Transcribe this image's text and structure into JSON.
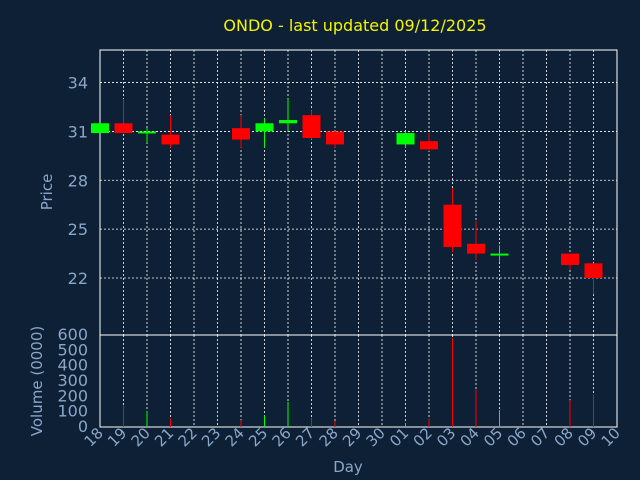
{
  "colors": {
    "background": "#0e2035",
    "title": "#f5f500",
    "axis_text": "#8aa6c8",
    "frame": "#ffffff",
    "grid": "#ffffff",
    "up": "#00ff00",
    "down": "#ff0000"
  },
  "chart_data": [
    {
      "type": "candlestick",
      "title": "ONDO - last updated 09/12/2025",
      "ylabel": "Price",
      "ylim": [
        18.5,
        36.0
      ],
      "yticks": [
        22,
        25,
        28,
        31,
        34
      ],
      "grid": true,
      "candles": [
        {
          "day": "18",
          "open": 30.9,
          "high": 31.5,
          "low": 30.9,
          "close": 31.5
        },
        {
          "day": "19",
          "open": 31.5,
          "high": 33.0,
          "low": 30.9,
          "close": 30.9
        },
        {
          "day": "20",
          "open": 30.9,
          "high": 31.2,
          "low": 30.3,
          "close": 31.0
        },
        {
          "day": "21",
          "open": 30.8,
          "high": 32.0,
          "low": 30.0,
          "close": 30.2
        },
        {
          "day": "24",
          "open": 31.2,
          "high": 32.0,
          "low": 30.0,
          "close": 30.5
        },
        {
          "day": "25",
          "open": 31.0,
          "high": 31.8,
          "low": 30.0,
          "close": 31.5
        },
        {
          "day": "26",
          "open": 31.5,
          "high": 33.0,
          "low": 31.0,
          "close": 31.7
        },
        {
          "day": "27",
          "open": 32.0,
          "high": 32.3,
          "low": 30.5,
          "close": 30.6
        },
        {
          "day": "28",
          "open": 31.0,
          "high": 31.0,
          "low": 30.0,
          "close": 30.2
        },
        {
          "day": "01",
          "open": 30.2,
          "high": 31.0,
          "low": 30.0,
          "close": 30.9
        },
        {
          "day": "02",
          "open": 30.4,
          "high": 30.9,
          "low": 29.8,
          "close": 29.9
        },
        {
          "day": "03",
          "open": 26.5,
          "high": 27.5,
          "low": 23.6,
          "close": 23.9
        },
        {
          "day": "04",
          "open": 24.1,
          "high": 25.5,
          "low": 23.1,
          "close": 23.5
        },
        {
          "day": "05",
          "open": 23.4,
          "high": 24.0,
          "low": 23.0,
          "close": 23.5
        },
        {
          "day": "08",
          "open": 23.5,
          "high": 23.5,
          "low": 22.5,
          "close": 22.8
        },
        {
          "day": "09",
          "open": 22.9,
          "high": 22.9,
          "low": 21.0,
          "close": 22.0
        }
      ]
    },
    {
      "type": "bar",
      "ylabel": "Volume (0000)",
      "ylim": [
        0,
        600
      ],
      "yticks": [
        0,
        100,
        200,
        300,
        400,
        500,
        600
      ],
      "xlabel": "Day",
      "categories": [
        "18",
        "19",
        "20",
        "21",
        "22",
        "23",
        "24",
        "25",
        "26",
        "27",
        "28",
        "29",
        "30",
        "01",
        "02",
        "03",
        "04",
        "05",
        "06",
        "07",
        "08",
        "09",
        "10"
      ],
      "volumes": [
        {
          "day": "19",
          "value": 140,
          "dir": "down"
        },
        {
          "day": "20",
          "value": 105,
          "dir": "up"
        },
        {
          "day": "21",
          "value": 55,
          "dir": "down"
        },
        {
          "day": "24",
          "value": 45,
          "dir": "down"
        },
        {
          "day": "25",
          "value": 75,
          "dir": "up"
        },
        {
          "day": "26",
          "value": 165,
          "dir": "up"
        },
        {
          "day": "27",
          "value": 60,
          "dir": "down"
        },
        {
          "day": "28",
          "value": 40,
          "dir": "down"
        },
        {
          "day": "01",
          "value": 25,
          "dir": "up"
        },
        {
          "day": "02",
          "value": 55,
          "dir": "down"
        },
        {
          "day": "03",
          "value": 580,
          "dir": "down"
        },
        {
          "day": "04",
          "value": 245,
          "dir": "down"
        },
        {
          "day": "05",
          "value": 110,
          "dir": "up"
        },
        {
          "day": "08",
          "value": 175,
          "dir": "down"
        },
        {
          "day": "09",
          "value": 210,
          "dir": "down"
        }
      ]
    }
  ]
}
